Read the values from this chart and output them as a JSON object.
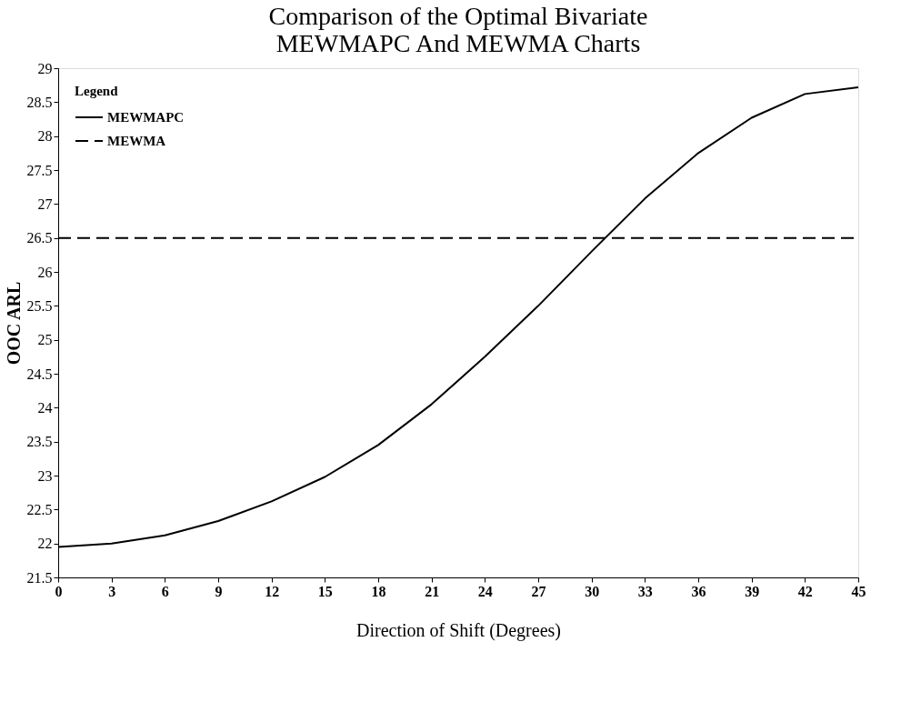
{
  "chart_data": {
    "type": "line",
    "title": [
      "Comparison of  the Optimal Bivariate",
      "MEWMAPC And MEWMA Charts"
    ],
    "xlabel": "Direction  of  Shift (Degrees)",
    "ylabel": "OOC ARL",
    "legend_title": "Legend",
    "x": [
      0,
      3,
      6,
      9,
      12,
      15,
      18,
      21,
      24,
      27,
      30,
      33,
      36,
      39,
      42,
      45
    ],
    "series": [
      {
        "name": "MEWMAPC",
        "color": "#000000",
        "line_style": "solid",
        "values": [
          21.95,
          22.0,
          22.12,
          22.33,
          22.62,
          22.98,
          23.45,
          24.05,
          24.75,
          25.5,
          26.3,
          27.08,
          27.75,
          28.27,
          28.62,
          28.72
        ]
      },
      {
        "name": "MEWMA",
        "color": "#000000",
        "line_style": "dashed",
        "x": [
          0,
          45
        ],
        "values": [
          26.5,
          26.5
        ]
      }
    ],
    "xlim": [
      0,
      45
    ],
    "xticks": [
      0,
      3,
      6,
      9,
      12,
      15,
      18,
      21,
      24,
      27,
      30,
      33,
      36,
      39,
      42,
      45
    ],
    "ylim": [
      21.5,
      29
    ],
    "yticks": [
      21.5,
      22,
      22.5,
      23,
      23.5,
      24,
      24.5,
      25,
      25.5,
      26,
      26.5,
      27,
      27.5,
      28,
      28.5,
      29
    ],
    "grid": false,
    "legend": "top left",
    "marker": "none"
  }
}
